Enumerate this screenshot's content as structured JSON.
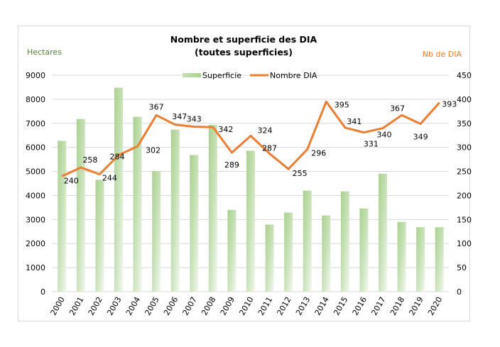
{
  "chart_data": {
    "type": "bar+line",
    "title": "Nombre et superficie des DIA",
    "subtitle": "(toutes superficies)",
    "categories": [
      "2000",
      "2001",
      "2002",
      "2003",
      "2004",
      "2005",
      "2006",
      "2007",
      "2008",
      "2009",
      "2010",
      "2011",
      "2012",
      "2013",
      "2014",
      "2015",
      "2016",
      "2017",
      "2018",
      "2019",
      "2020"
    ],
    "series": [
      {
        "name": "Superficie",
        "type": "bar",
        "axis": "left",
        "color": "#a9d18e",
        "values": [
          6270,
          7180,
          4650,
          8480,
          7270,
          5020,
          6740,
          5680,
          6940,
          3400,
          5860,
          2790,
          3290,
          4200,
          3170,
          4170,
          3460,
          4900,
          2900,
          2680,
          2680
        ]
      },
      {
        "name": "Nombre DIA",
        "type": "line",
        "axis": "right",
        "color": "#ed7d31",
        "values": [
          240,
          258,
          244,
          284,
          302,
          367,
          347,
          343,
          342,
          289,
          324,
          287,
          255,
          296,
          395,
          341,
          331,
          340,
          367,
          349,
          393
        ],
        "data_labels": [
          "240",
          "258",
          "244",
          "284",
          "302",
          "367",
          "347",
          "343",
          "342",
          "289",
          "324",
          "287",
          "255",
          "296",
          "395",
          "341",
          "331",
          "340",
          "367",
          "349",
          "393"
        ]
      }
    ],
    "ylabel_left": "Hectares",
    "ylabel_right": "Nb de DIA",
    "ylim_left": [
      0,
      9000
    ],
    "ylim_right": [
      0,
      450
    ],
    "yticks_left": [
      "0",
      "1000",
      "2000",
      "3000",
      "4000",
      "5000",
      "6000",
      "7000",
      "8000",
      "9000"
    ],
    "yticks_right": [
      "0",
      "50",
      "100",
      "150",
      "200",
      "250",
      "300",
      "350",
      "400",
      "450"
    ],
    "legend": [
      "Superficie",
      "Nombre DIA"
    ],
    "legend_position": "top-center",
    "grid": true
  }
}
